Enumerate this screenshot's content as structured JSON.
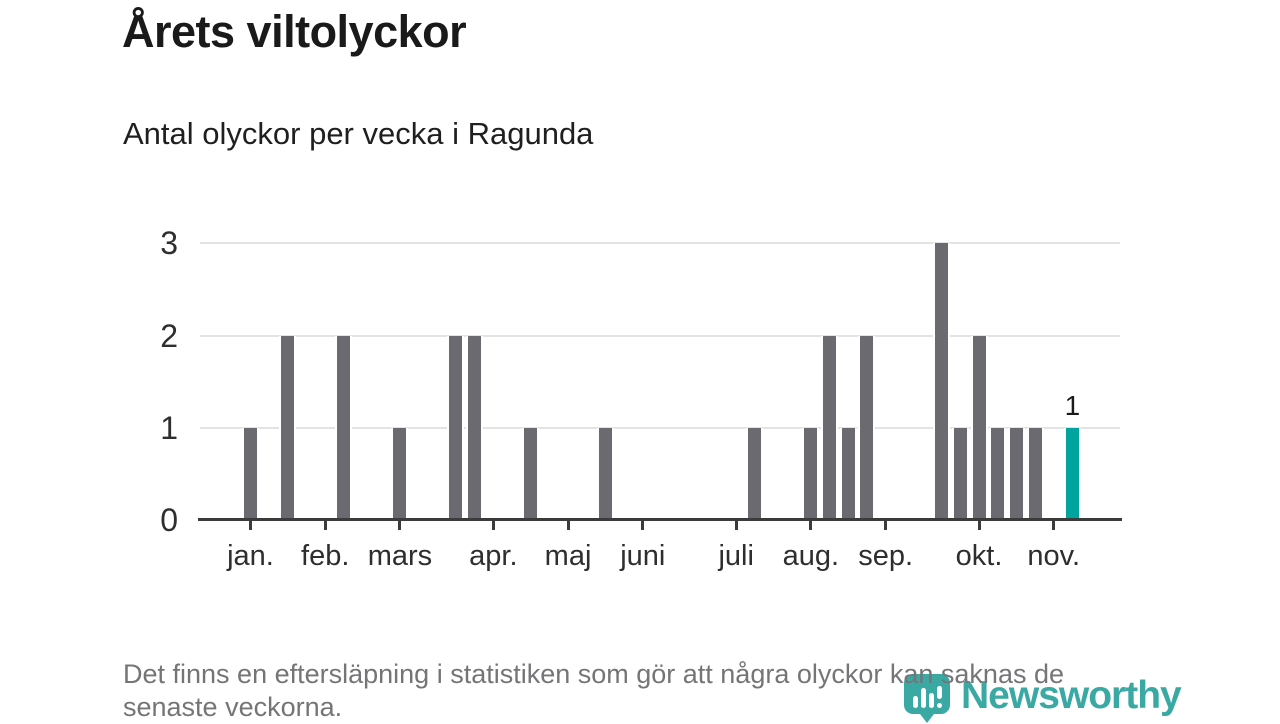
{
  "chart_data": {
    "type": "bar",
    "title": "Årets viltolyckor",
    "subtitle": "Antal olyckor per vecka i Ragunda",
    "x_unit": "vecka",
    "ylim": [
      0,
      3
    ],
    "yticks": [
      0,
      1,
      2,
      3
    ],
    "grid": "horizontal-only",
    "legend": null,
    "values_by_week": [
      1,
      0,
      2,
      0,
      0,
      2,
      0,
      0,
      1,
      0,
      0,
      2,
      2,
      0,
      0,
      1,
      0,
      0,
      0,
      1,
      0,
      0,
      0,
      0,
      0,
      0,
      0,
      1,
      0,
      0,
      1,
      2,
      1,
      2,
      0,
      0,
      0,
      3,
      1,
      2,
      1,
      1,
      1,
      0,
      1,
      0,
      0
    ],
    "month_ticks": [
      {
        "label": "jan.",
        "week": 0
      },
      {
        "label": "feb.",
        "week": 4
      },
      {
        "label": "mars",
        "week": 8
      },
      {
        "label": "apr.",
        "week": 13
      },
      {
        "label": "maj",
        "week": 17
      },
      {
        "label": "juni",
        "week": 21
      },
      {
        "label": "juli",
        "week": 26
      },
      {
        "label": "aug.",
        "week": 30
      },
      {
        "label": "sep.",
        "week": 34
      },
      {
        "label": "okt.",
        "week": 39
      },
      {
        "label": "nov.",
        "week": 43
      }
    ],
    "highlight": {
      "week": 44,
      "value": 1,
      "label": "1"
    },
    "colors": {
      "bar": "#6a6a70",
      "highlight": "#00a49f",
      "grid": "#e3e3e3",
      "axis": "#3b3b3b",
      "text": "#2e2e2e"
    }
  },
  "footer": {
    "note": "Det finns en eftersläpning i statistiken som gör att några olyckor kan saknas de senaste veckorna."
  },
  "logo": {
    "wordmark": "Newsworthy",
    "color": "#3aa8a3"
  }
}
